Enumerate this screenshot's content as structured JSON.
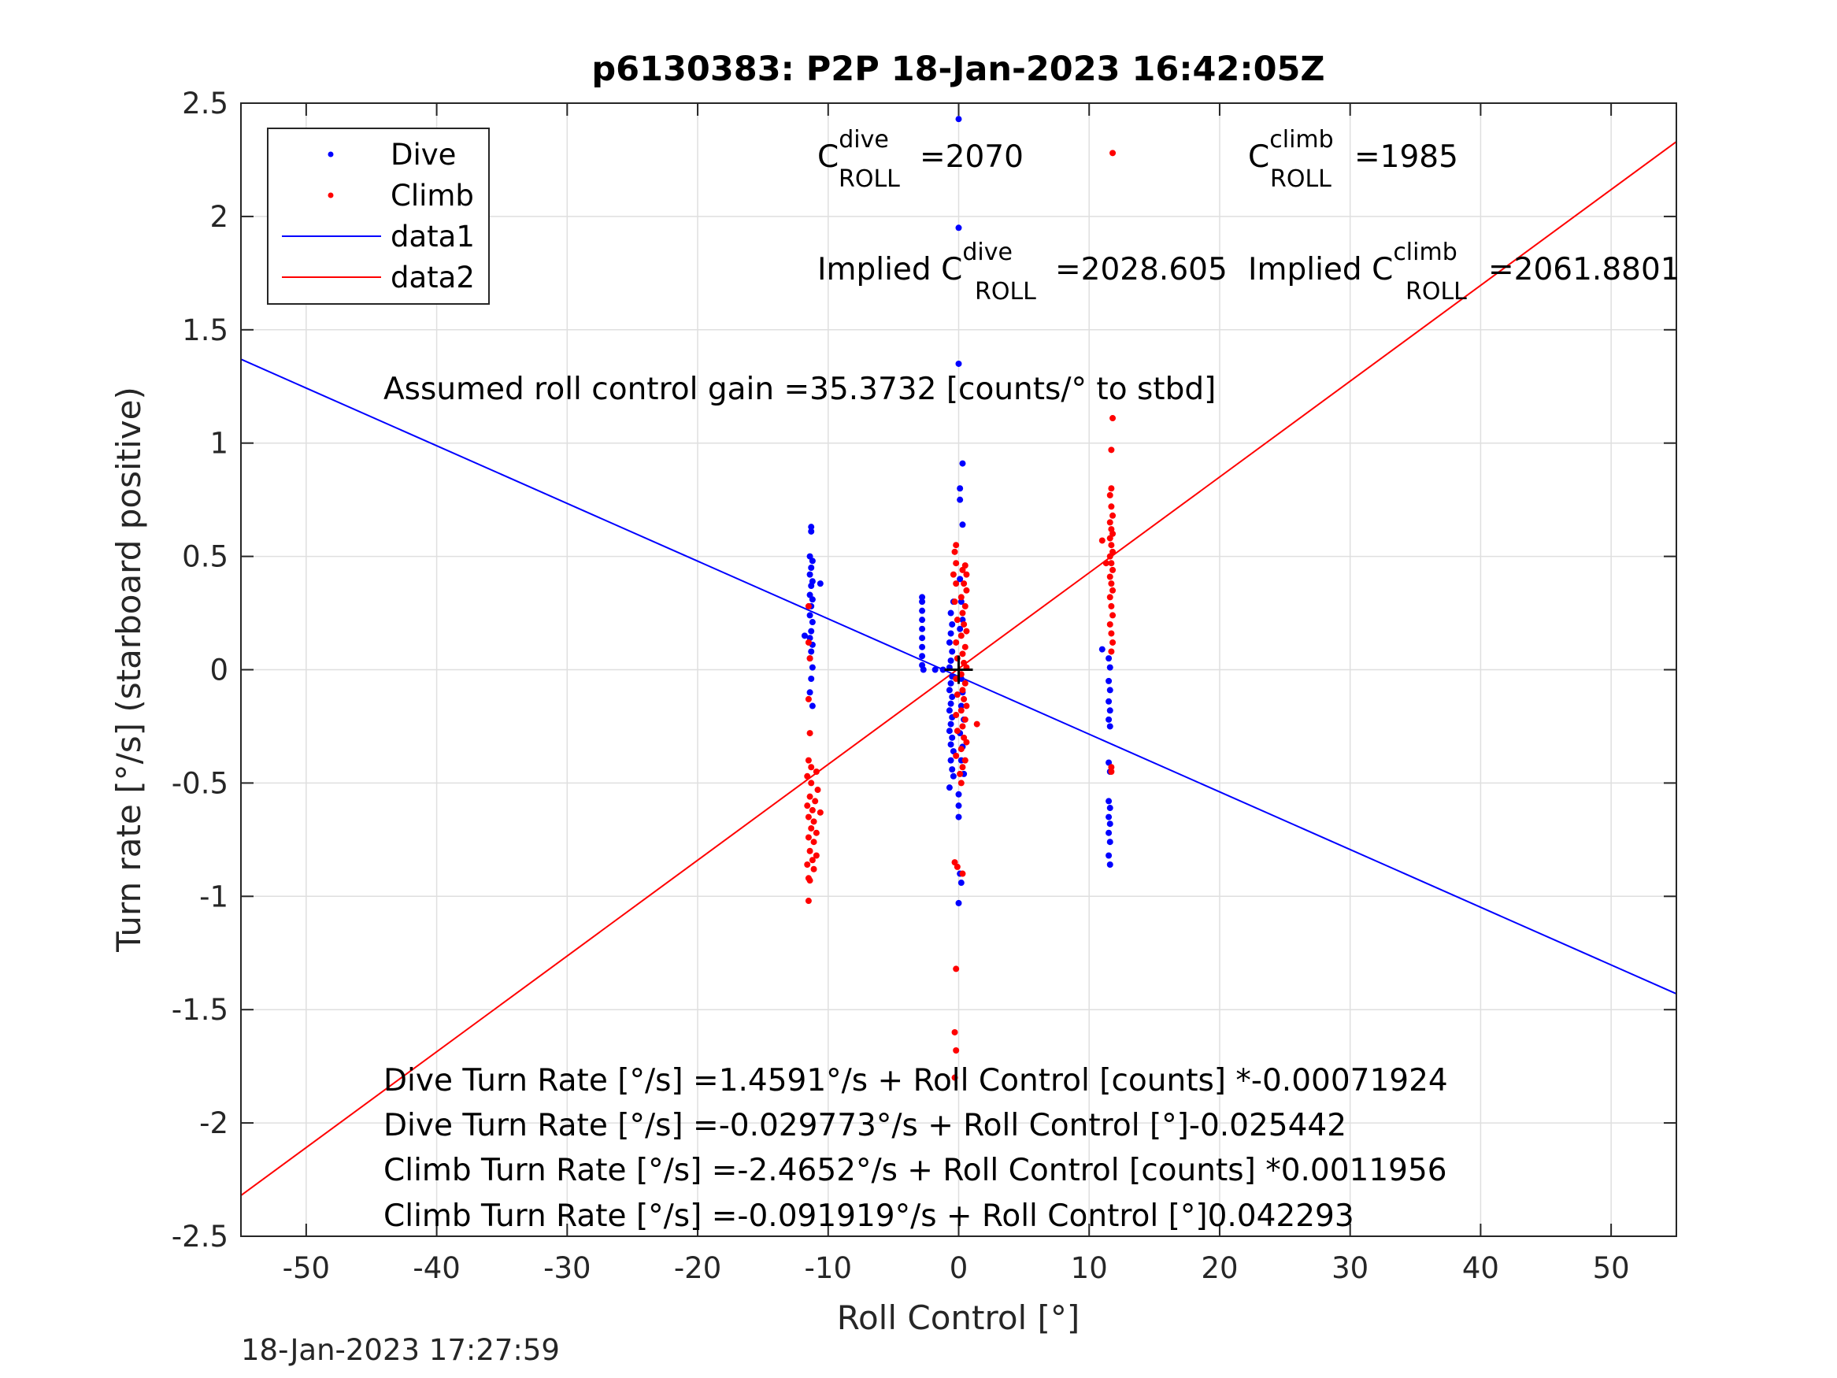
{
  "chart_data": {
    "type": "scatter",
    "title": "p6130383: P2P 18-Jan-2023 16:42:05Z",
    "xlabel": "Roll Control [°]",
    "ylabel": "Turn rate [°/s] (starboard positive)",
    "xlim": [
      -55,
      55
    ],
    "ylim": [
      -2.5,
      2.5
    ],
    "xticks": [
      -50,
      -40,
      -30,
      -20,
      -10,
      0,
      10,
      20,
      30,
      40,
      50
    ],
    "xtick_labels": [
      "-50",
      "-40",
      "-30",
      "-20",
      "-10",
      "0",
      "10",
      "20",
      "30",
      "40",
      "50"
    ],
    "yticks": [
      2.5,
      2,
      1.5,
      1,
      0.5,
      0,
      -0.5,
      -1,
      -1.5,
      -2,
      -2.5
    ],
    "ytick_labels": [
      "2.5",
      "2",
      "1.5",
      "1",
      "0.5",
      "0",
      "-0.5",
      "-1",
      "-1.5",
      "-2",
      "-2.5"
    ],
    "grid": true,
    "legend_position": "top-left",
    "legend": [
      {
        "label": "Dive",
        "kind": "dot",
        "color": "#0000ff"
      },
      {
        "label": "Climb",
        "kind": "dot",
        "color": "#ff0000"
      },
      {
        "label": "data1",
        "kind": "line",
        "color": "#0000ff"
      },
      {
        "label": "data2",
        "kind": "line",
        "color": "#ff0000"
      }
    ],
    "series": [
      {
        "name": "Dive",
        "color": "#0000ff",
        "points": [
          [
            -11.3,
            0.63
          ],
          [
            -11.3,
            0.61
          ],
          [
            -11.4,
            0.5
          ],
          [
            -11.2,
            0.48
          ],
          [
            -11.3,
            0.45
          ],
          [
            -11.4,
            0.42
          ],
          [
            -11.2,
            0.39
          ],
          [
            -11.3,
            0.37
          ],
          [
            -11.4,
            0.33
          ],
          [
            -11.2,
            0.31
          ],
          [
            -11.3,
            0.28
          ],
          [
            -11.4,
            0.24
          ],
          [
            -11.2,
            0.21
          ],
          [
            -11.3,
            0.17
          ],
          [
            -11.4,
            0.14
          ],
          [
            -11.2,
            0.11
          ],
          [
            -11.3,
            0.08
          ],
          [
            -11.4,
            0.05
          ],
          [
            -11.2,
            0.01
          ],
          [
            -11.3,
            -0.04
          ],
          [
            -11.4,
            -0.1
          ],
          [
            -11.2,
            -0.16
          ],
          [
            -10.6,
            0.38
          ],
          [
            -11.8,
            0.15
          ],
          [
            -2.8,
            0.32
          ],
          [
            -2.8,
            0.3
          ],
          [
            -2.8,
            0.26
          ],
          [
            -2.8,
            0.22
          ],
          [
            -2.8,
            0.18
          ],
          [
            -2.8,
            0.14
          ],
          [
            -2.8,
            0.1
          ],
          [
            -2.8,
            0.06
          ],
          [
            -2.8,
            0.02
          ],
          [
            -2.7,
            0.0
          ],
          [
            -1.8,
            0.0
          ],
          [
            -1.2,
            0.0
          ],
          [
            0.0,
            2.43
          ],
          [
            0.0,
            1.95
          ],
          [
            0.0,
            1.35
          ],
          [
            0.3,
            0.91
          ],
          [
            0.1,
            0.8
          ],
          [
            0.1,
            0.75
          ],
          [
            0.3,
            0.64
          ],
          [
            0.1,
            0.4
          ],
          [
            -0.4,
            0.3
          ],
          [
            -0.6,
            0.25
          ],
          [
            -0.5,
            0.2
          ],
          [
            -0.6,
            0.16
          ],
          [
            -0.7,
            0.12
          ],
          [
            -0.5,
            0.08
          ],
          [
            -0.6,
            0.04
          ],
          [
            -0.7,
            0.01
          ],
          [
            -0.5,
            -0.03
          ],
          [
            -0.6,
            -0.06
          ],
          [
            -0.7,
            -0.09
          ],
          [
            -0.5,
            -0.12
          ],
          [
            -0.6,
            -0.15
          ],
          [
            -0.7,
            -0.18
          ],
          [
            -0.5,
            -0.21
          ],
          [
            -0.6,
            -0.24
          ],
          [
            -0.7,
            -0.27
          ],
          [
            -0.5,
            -0.3
          ],
          [
            -0.6,
            -0.33
          ],
          [
            -0.4,
            -0.36
          ],
          [
            -0.6,
            -0.4
          ],
          [
            -0.5,
            -0.44
          ],
          [
            -0.4,
            -0.47
          ],
          [
            -0.7,
            -0.52
          ],
          [
            0.2,
            -0.04
          ],
          [
            0.3,
            -0.1
          ],
          [
            0.2,
            -0.16
          ],
          [
            0.4,
            -0.22
          ],
          [
            0.1,
            -0.28
          ],
          [
            0.3,
            -0.34
          ],
          [
            0.2,
            -0.4
          ],
          [
            0.4,
            -0.46
          ],
          [
            0.0,
            -0.55
          ],
          [
            0.0,
            -0.6
          ],
          [
            0.0,
            -0.65
          ],
          [
            0.1,
            -0.9
          ],
          [
            0.2,
            -0.94
          ],
          [
            0.0,
            -1.03
          ],
          [
            0.2,
            0.3
          ],
          [
            0.3,
            0.22
          ],
          [
            0.1,
            0.18
          ],
          [
            11.0,
            0.09
          ],
          [
            11.5,
            0.05
          ],
          [
            11.6,
            0.01
          ],
          [
            11.5,
            -0.05
          ],
          [
            11.6,
            -0.09
          ],
          [
            11.5,
            -0.14
          ],
          [
            11.6,
            -0.18
          ],
          [
            11.5,
            -0.22
          ],
          [
            11.6,
            -0.25
          ],
          [
            11.5,
            -0.41
          ],
          [
            11.6,
            -0.45
          ],
          [
            11.5,
            -0.58
          ],
          [
            11.6,
            -0.61
          ],
          [
            11.5,
            -0.65
          ],
          [
            11.6,
            -0.68
          ],
          [
            11.5,
            -0.72
          ],
          [
            11.6,
            -0.76
          ],
          [
            11.5,
            -0.82
          ],
          [
            11.6,
            -0.86
          ]
        ]
      },
      {
        "name": "Climb",
        "color": "#ff0000",
        "points": [
          [
            -11.5,
            0.28
          ],
          [
            -11.5,
            0.12
          ],
          [
            -11.4,
            0.05
          ],
          [
            -11.5,
            -0.13
          ],
          [
            -11.4,
            -0.28
          ],
          [
            -11.5,
            -0.4
          ],
          [
            -11.3,
            -0.43
          ],
          [
            -11.6,
            -0.47
          ],
          [
            -10.9,
            -0.45
          ],
          [
            -11.3,
            -0.5
          ],
          [
            -10.8,
            -0.53
          ],
          [
            -11.4,
            -0.56
          ],
          [
            -11.0,
            -0.58
          ],
          [
            -11.6,
            -0.6
          ],
          [
            -11.2,
            -0.62
          ],
          [
            -10.6,
            -0.63
          ],
          [
            -11.5,
            -0.65
          ],
          [
            -11.1,
            -0.67
          ],
          [
            -11.3,
            -0.7
          ],
          [
            -10.9,
            -0.72
          ],
          [
            -11.5,
            -0.74
          ],
          [
            -11.1,
            -0.76
          ],
          [
            -11.4,
            -0.8
          ],
          [
            -10.9,
            -0.82
          ],
          [
            -11.2,
            -0.84
          ],
          [
            -11.6,
            -0.86
          ],
          [
            -11.1,
            -0.88
          ],
          [
            -11.5,
            -0.92
          ],
          [
            -11.4,
            -0.93
          ],
          [
            -11.5,
            -1.02
          ],
          [
            -0.2,
            0.55
          ],
          [
            -0.3,
            0.52
          ],
          [
            -0.2,
            0.47
          ],
          [
            0.5,
            0.46
          ],
          [
            0.6,
            0.42
          ],
          [
            0.3,
            0.44
          ],
          [
            -0.4,
            0.42
          ],
          [
            -0.2,
            0.38
          ],
          [
            0.4,
            0.38
          ],
          [
            0.6,
            0.35
          ],
          [
            0.2,
            0.32
          ],
          [
            -0.3,
            0.3
          ],
          [
            0.5,
            0.28
          ],
          [
            0.3,
            0.25
          ],
          [
            -0.1,
            0.22
          ],
          [
            0.4,
            0.2
          ],
          [
            0.6,
            0.17
          ],
          [
            0.2,
            0.15
          ],
          [
            -0.2,
            0.12
          ],
          [
            0.5,
            0.1
          ],
          [
            0.3,
            0.07
          ],
          [
            -0.1,
            0.05
          ],
          [
            0.4,
            0.03
          ],
          [
            0.6,
            0.01
          ],
          [
            0.2,
            -0.02
          ],
          [
            -0.2,
            -0.04
          ],
          [
            0.5,
            -0.06
          ],
          [
            0.3,
            -0.09
          ],
          [
            -0.1,
            -0.11
          ],
          [
            0.4,
            -0.13
          ],
          [
            0.6,
            -0.16
          ],
          [
            0.2,
            -0.18
          ],
          [
            -0.2,
            -0.2
          ],
          [
            0.5,
            -0.22
          ],
          [
            0.3,
            -0.25
          ],
          [
            -0.1,
            -0.27
          ],
          [
            0.4,
            -0.3
          ],
          [
            0.6,
            -0.32
          ],
          [
            0.2,
            -0.35
          ],
          [
            -0.2,
            -0.38
          ],
          [
            0.5,
            -0.4
          ],
          [
            0.3,
            -0.43
          ],
          [
            0.1,
            -0.46
          ],
          [
            0.2,
            -0.5
          ],
          [
            1.4,
            -0.24
          ],
          [
            -0.3,
            -0.85
          ],
          [
            -0.1,
            -0.87
          ],
          [
            0.3,
            -0.9
          ],
          [
            -0.2,
            -1.32
          ],
          [
            -0.3,
            -1.6
          ],
          [
            -0.2,
            -1.68
          ],
          [
            -0.3,
            -1.8
          ],
          [
            11.8,
            1.11
          ],
          [
            11.7,
            0.97
          ],
          [
            11.7,
            0.8
          ],
          [
            11.6,
            0.77
          ],
          [
            11.7,
            0.72
          ],
          [
            11.8,
            0.68
          ],
          [
            11.6,
            0.65
          ],
          [
            11.7,
            0.62
          ],
          [
            11.8,
            0.6
          ],
          [
            11.6,
            0.58
          ],
          [
            11.0,
            0.57
          ],
          [
            11.7,
            0.55
          ],
          [
            11.8,
            0.52
          ],
          [
            11.6,
            0.5
          ],
          [
            11.7,
            0.47
          ],
          [
            11.3,
            0.47
          ],
          [
            11.8,
            0.44
          ],
          [
            11.6,
            0.41
          ],
          [
            11.7,
            0.38
          ],
          [
            11.8,
            0.35
          ],
          [
            11.6,
            0.32
          ],
          [
            11.7,
            0.28
          ],
          [
            11.8,
            0.24
          ],
          [
            11.6,
            0.2
          ],
          [
            11.7,
            0.16
          ],
          [
            11.8,
            0.12
          ],
          [
            11.7,
            0.08
          ],
          [
            11.7,
            -0.43
          ],
          [
            11.7,
            -0.45
          ],
          [
            11.8,
            2.28
          ]
        ]
      }
    ],
    "fit_lines": [
      {
        "name": "data1",
        "color": "#0000ff",
        "x": [
          -55,
          55
        ],
        "y": [
          1.37,
          -1.43
        ]
      },
      {
        "name": "data2",
        "color": "#ff0000",
        "x": [
          -55,
          55
        ],
        "y": [
          -2.32,
          2.33
        ]
      }
    ],
    "center_marker": {
      "x": 0,
      "y": 0,
      "symbol": "+"
    }
  },
  "annotations": {
    "c_dive": {
      "base": "C",
      "sup": "dive",
      "sub": "ROLL",
      "value": "=2070"
    },
    "c_climb": {
      "base": "C",
      "sup": "climb",
      "sub": "ROLL",
      "value": "=1985"
    },
    "implied_dive": {
      "prefix": "Implied ",
      "base": "C",
      "sup": "dive",
      "sub": "ROLL",
      "value": "=2028.605"
    },
    "implied_climb": {
      "prefix": "Implied ",
      "base": "C",
      "sup": "climb",
      "sub": "ROLL",
      "value": "=2061.8801"
    },
    "gain": "Assumed roll control gain =35.3732 [counts/° to stbd]",
    "eq1": "Dive Turn Rate [°/s] =1.4591°/s + Roll Control [counts] *-0.00071924",
    "eq2": "Dive Turn Rate [°/s] =-0.029773°/s + Roll Control [°]-0.025442",
    "eq3": "Climb Turn Rate [°/s] =-2.4652°/s + Roll Control [counts] *0.0011956",
    "eq4": "Climb Turn Rate [°/s] =-0.091919°/s + Roll Control [°]0.042293"
  },
  "footer_timestamp": "18-Jan-2023 17:27:59"
}
